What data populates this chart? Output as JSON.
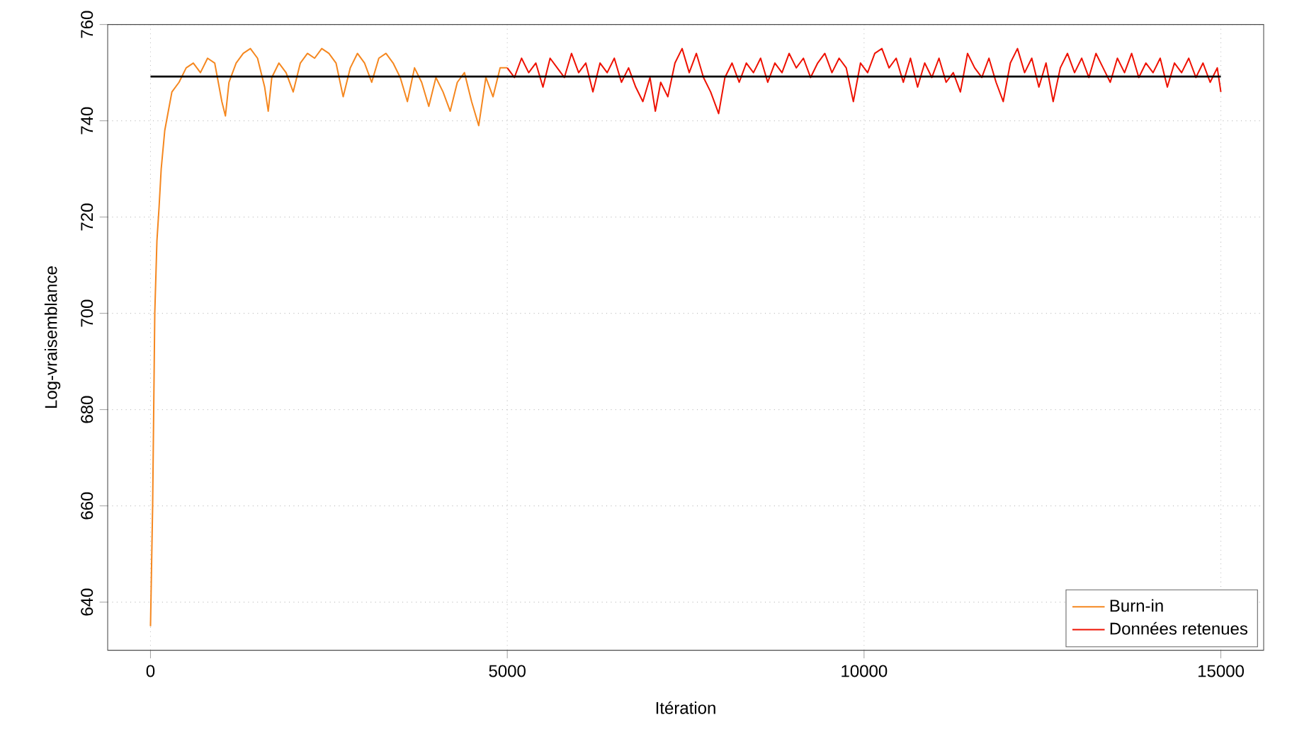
{
  "chart_data": {
    "type": "line",
    "xlabel": "Itération",
    "ylabel": "Log-vraisemblance",
    "xlim": [
      -600,
      15600
    ],
    "ylim": [
      630,
      760
    ],
    "xticks": [
      0,
      5000,
      10000,
      15000
    ],
    "yticks": [
      640,
      660,
      680,
      700,
      720,
      740,
      760
    ],
    "grid": true,
    "legend": "bottom right",
    "marker": "none",
    "line_style": "solid",
    "series": [
      {
        "name": "Burn-in",
        "color": "#f5871f",
        "x": [
          0,
          30,
          60,
          90,
          120,
          150,
          200,
          250,
          300,
          400,
          500,
          600,
          700,
          800,
          900,
          1000,
          1050,
          1100,
          1200,
          1300,
          1400,
          1500,
          1600,
          1650,
          1700,
          1800,
          1900,
          2000,
          2100,
          2200,
          2300,
          2400,
          2500,
          2600,
          2700,
          2800,
          2900,
          3000,
          3100,
          3200,
          3300,
          3400,
          3500,
          3600,
          3700,
          3800,
          3900,
          4000,
          4100,
          4200,
          4300,
          4400,
          4500,
          4600,
          4700,
          4800,
          4900,
          5000
        ],
        "values": [
          635,
          660,
          700,
          715,
          722,
          730,
          738,
          742,
          746,
          748,
          751,
          752,
          750,
          753,
          752,
          744,
          741,
          748,
          752,
          754,
          755,
          753,
          747,
          742,
          749,
          752,
          750,
          746,
          752,
          754,
          753,
          755,
          754,
          752,
          745,
          751,
          754,
          752,
          748,
          753,
          754,
          752,
          749,
          744,
          751,
          748,
          743,
          749,
          746,
          742,
          748,
          750,
          744,
          739,
          749,
          745,
          751,
          751
        ]
      },
      {
        "name": "Données retenues",
        "color": "#ee1100",
        "x": [
          5000,
          5100,
          5200,
          5300,
          5400,
          5500,
          5600,
          5700,
          5800,
          5900,
          6000,
          6100,
          6200,
          6300,
          6400,
          6500,
          6600,
          6700,
          6800,
          6900,
          7000,
          7075,
          7150,
          7250,
          7350,
          7450,
          7550,
          7650,
          7750,
          7850,
          7962,
          8050,
          8150,
          8250,
          8350,
          8450,
          8550,
          8650,
          8750,
          8850,
          8950,
          9050,
          9150,
          9250,
          9350,
          9450,
          9550,
          9650,
          9750,
          9850,
          9950,
          10050,
          10150,
          10250,
          10350,
          10450,
          10550,
          10650,
          10750,
          10850,
          10950,
          11050,
          11150,
          11250,
          11350,
          11450,
          11550,
          11650,
          11750,
          11850,
          11950,
          12050,
          12150,
          12250,
          12350,
          12450,
          12550,
          12650,
          12750,
          12850,
          12950,
          13050,
          13150,
          13250,
          13350,
          13450,
          13550,
          13650,
          13750,
          13850,
          13950,
          14050,
          14150,
          14250,
          14350,
          14450,
          14550,
          14650,
          14750,
          14850,
          14950,
          15000
        ],
        "values": [
          751,
          749,
          753,
          750,
          752,
          747,
          753,
          751,
          749,
          754,
          750,
          752,
          746,
          752,
          750,
          753,
          748,
          751,
          747,
          744,
          749,
          742,
          748,
          745,
          752,
          755,
          750,
          754,
          749,
          746,
          741.5,
          749,
          752,
          748,
          752,
          750,
          753,
          748,
          752,
          750,
          754,
          751,
          753,
          749,
          752,
          754,
          750,
          753,
          751,
          744,
          752,
          750,
          754,
          755,
          751,
          753,
          748,
          753,
          747,
          752,
          749,
          753,
          748,
          750,
          746,
          754,
          751,
          749,
          753,
          748,
          744,
          752,
          755,
          750,
          753,
          747,
          752,
          744,
          751,
          754,
          750,
          753,
          749,
          754,
          751,
          748,
          753,
          750,
          754,
          749,
          752,
          750,
          753,
          747,
          752,
          750,
          753,
          749,
          752,
          748,
          751,
          746
        ]
      },
      {
        "color": "#000000",
        "x": [
          0,
          15000
        ],
        "values": [
          749.2,
          749.2
        ]
      }
    ]
  }
}
